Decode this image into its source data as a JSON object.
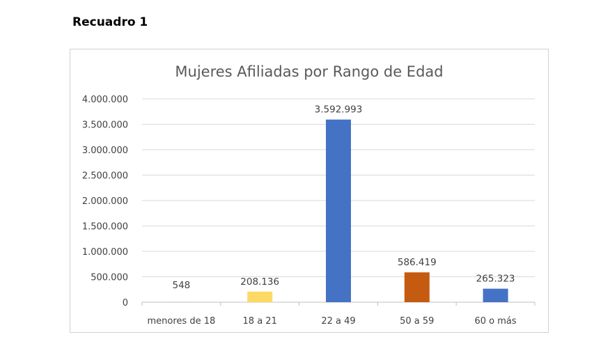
{
  "heading": "Recuadro 1",
  "chart_data": {
    "type": "bar",
    "title": "Mujeres Afiliadas por Rango de Edad",
    "xlabel": "",
    "ylabel": "",
    "ylim": [
      0,
      4000000
    ],
    "yticks": [
      0,
      500000,
      1000000,
      1500000,
      2000000,
      2500000,
      3000000,
      3500000,
      4000000
    ],
    "ytick_labels": [
      "0",
      "500.000",
      "1.000.000",
      "1.500.000",
      "2.000.000",
      "2.500.000",
      "3.000.000",
      "3.500.000",
      "4.000.000"
    ],
    "grid": true,
    "categories": [
      "menores de 18",
      "18 a 21",
      "22 a 49",
      "50 a 59",
      "60 o más"
    ],
    "values": [
      548,
      208136,
      3592993,
      586419,
      265323
    ],
    "data_labels": [
      "548",
      "208.136",
      "3.592.993",
      "586.419",
      "265.323"
    ],
    "colors": [
      "#4472c4",
      "#ffd966",
      "#4472c4",
      "#c55a11",
      "#4472c4"
    ]
  }
}
